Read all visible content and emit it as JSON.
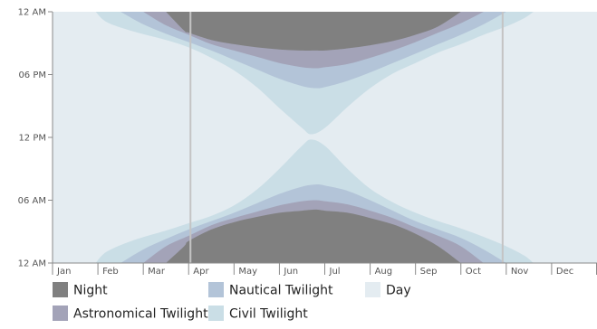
{
  "chart_data": {
    "type": "area",
    "title": "",
    "xlabel": "",
    "ylabel": "",
    "x_axis": {
      "categories": [
        "Jan",
        "Feb",
        "Mar",
        "Apr",
        "May",
        "Jun",
        "Jul",
        "Aug",
        "Sep",
        "Oct",
        "Nov",
        "Dec"
      ]
    },
    "y_axis": {
      "range_hours": [
        0,
        24
      ],
      "ticks": [
        {
          "hour": 0,
          "label": "12 AM"
        },
        {
          "hour": 6,
          "label": "06 AM"
        },
        {
          "hour": 12,
          "label": "12 PM"
        },
        {
          "hour": 18,
          "label": "06 PM"
        },
        {
          "hour": 24,
          "label": "12 AM"
        }
      ]
    },
    "reference_lines": [
      {
        "month_position": 3.04
      },
      {
        "month_position": 9.92
      }
    ],
    "series": [
      {
        "name": "Day",
        "color": "#e4ecf1",
        "start_month": 0,
        "end_month": 12,
        "points": [
          {
            "month": 0,
            "start": 0,
            "end": 24
          },
          {
            "month": 12,
            "start": 0,
            "end": 24
          }
        ]
      },
      {
        "name": "Civil Twilight",
        "color": "#cadee6",
        "start_month": 0.95,
        "end_month": 10.6,
        "points": [
          {
            "month": 0.95,
            "start": 0.0,
            "end": 0.0
          },
          {
            "month": 1.2,
            "start": 0.0,
            "end": 1.1
          },
          {
            "month": 1.8,
            "start": 0.0,
            "end": 2.2
          },
          {
            "month": 2.5,
            "start": 0.0,
            "end": 3.1
          },
          {
            "month": 3.0,
            "start": 0.0,
            "end": 3.8
          },
          {
            "month": 3.5,
            "start": 0.0,
            "end": 4.5
          },
          {
            "month": 4.0,
            "start": 0.0,
            "end": 5.5
          },
          {
            "month": 4.5,
            "start": 0.0,
            "end": 7.0
          },
          {
            "month": 5.0,
            "start": 0.0,
            "end": 9.0
          },
          {
            "month": 5.5,
            "start": 0.0,
            "end": 11.2
          },
          {
            "month": 5.7,
            "start": 0.0,
            "end": 11.8
          },
          {
            "month": 6.0,
            "start": 0.0,
            "end": 11.2
          },
          {
            "month": 6.5,
            "start": 0.0,
            "end": 9.0
          },
          {
            "month": 7.0,
            "start": 0.0,
            "end": 7.1
          },
          {
            "month": 7.5,
            "start": 0.0,
            "end": 5.8
          },
          {
            "month": 8.0,
            "start": 0.0,
            "end": 4.8
          },
          {
            "month": 8.5,
            "start": 0.0,
            "end": 4.0
          },
          {
            "month": 9.0,
            "start": 0.0,
            "end": 3.3
          },
          {
            "month": 9.5,
            "start": 0.0,
            "end": 2.5
          },
          {
            "month": 10.0,
            "start": 0.0,
            "end": 1.6
          },
          {
            "month": 10.4,
            "start": 0.0,
            "end": 0.7
          },
          {
            "month": 10.6,
            "start": 0.0,
            "end": 0.0
          }
        ],
        "points_evening": [
          {
            "month": 0.95,
            "start": 24.0,
            "end": 24.0
          },
          {
            "month": 1.2,
            "start": 23.0,
            "end": 24.0
          },
          {
            "month": 1.8,
            "start": 22.1,
            "end": 24.0
          },
          {
            "month": 2.5,
            "start": 21.3,
            "end": 24.0
          },
          {
            "month": 3.0,
            "start": 20.6,
            "end": 24.0
          },
          {
            "month": 3.5,
            "start": 19.6,
            "end": 24.0
          },
          {
            "month": 4.0,
            "start": 18.4,
            "end": 24.0
          },
          {
            "month": 4.5,
            "start": 16.8,
            "end": 24.0
          },
          {
            "month": 5.0,
            "start": 14.8,
            "end": 24.0
          },
          {
            "month": 5.5,
            "start": 12.9,
            "end": 24.0
          },
          {
            "month": 5.7,
            "start": 12.3,
            "end": 24.0
          },
          {
            "month": 6.0,
            "start": 12.9,
            "end": 24.0
          },
          {
            "month": 6.5,
            "start": 14.9,
            "end": 24.0
          },
          {
            "month": 7.0,
            "start": 16.7,
            "end": 24.0
          },
          {
            "month": 7.5,
            "start": 18.1,
            "end": 24.0
          },
          {
            "month": 8.0,
            "start": 19.1,
            "end": 24.0
          },
          {
            "month": 8.5,
            "start": 20.1,
            "end": 24.0
          },
          {
            "month": 9.0,
            "start": 20.9,
            "end": 24.0
          },
          {
            "month": 9.5,
            "start": 21.8,
            "end": 24.0
          },
          {
            "month": 10.0,
            "start": 22.6,
            "end": 24.0
          },
          {
            "month": 10.4,
            "start": 23.4,
            "end": 24.0
          },
          {
            "month": 10.6,
            "start": 24.0,
            "end": 24.0
          }
        ]
      },
      {
        "name": "Nautical Twilight",
        "color": "#b3c4d8",
        "start_month": 1.5,
        "end_month": 10.0,
        "points": [
          {
            "month": 1.5,
            "start": 0.0,
            "end": 0.0
          },
          {
            "month": 2.0,
            "start": 0.0,
            "end": 1.3
          },
          {
            "month": 2.5,
            "start": 0.0,
            "end": 2.3
          },
          {
            "month": 3.0,
            "start": 0.0,
            "end": 3.2
          },
          {
            "month": 3.5,
            "start": 0.0,
            "end": 4.0
          },
          {
            "month": 4.0,
            "start": 0.0,
            "end": 4.8
          },
          {
            "month": 4.5,
            "start": 0.0,
            "end": 5.7
          },
          {
            "month": 5.0,
            "start": 0.0,
            "end": 6.6
          },
          {
            "month": 5.5,
            "start": 0.0,
            "end": 7.3
          },
          {
            "month": 5.8,
            "start": 0.0,
            "end": 7.5
          },
          {
            "month": 6.0,
            "start": 0.0,
            "end": 7.4
          },
          {
            "month": 6.5,
            "start": 0.0,
            "end": 6.9
          },
          {
            "month": 7.0,
            "start": 0.0,
            "end": 6.0
          },
          {
            "month": 7.5,
            "start": 0.0,
            "end": 5.0
          },
          {
            "month": 8.0,
            "start": 0.0,
            "end": 4.0
          },
          {
            "month": 8.5,
            "start": 0.0,
            "end": 3.2
          },
          {
            "month": 9.0,
            "start": 0.0,
            "end": 2.4
          },
          {
            "month": 9.5,
            "start": 0.0,
            "end": 1.3
          },
          {
            "month": 10.0,
            "start": 0.0,
            "end": 0.0
          }
        ],
        "points_evening": [
          {
            "month": 1.5,
            "start": 24.0,
            "end": 24.0
          },
          {
            "month": 2.0,
            "start": 22.8,
            "end": 24.0
          },
          {
            "month": 2.5,
            "start": 21.9,
            "end": 24.0
          },
          {
            "month": 3.0,
            "start": 21.1,
            "end": 24.0
          },
          {
            "month": 3.5,
            "start": 20.3,
            "end": 24.0
          },
          {
            "month": 4.0,
            "start": 19.4,
            "end": 24.0
          },
          {
            "month": 4.5,
            "start": 18.5,
            "end": 24.0
          },
          {
            "month": 5.0,
            "start": 17.6,
            "end": 24.0
          },
          {
            "month": 5.5,
            "start": 16.9,
            "end": 24.0
          },
          {
            "month": 5.8,
            "start": 16.7,
            "end": 24.0
          },
          {
            "month": 6.0,
            "start": 16.8,
            "end": 24.0
          },
          {
            "month": 6.5,
            "start": 17.4,
            "end": 24.0
          },
          {
            "month": 7.0,
            "start": 18.2,
            "end": 24.0
          },
          {
            "month": 7.5,
            "start": 19.1,
            "end": 24.0
          },
          {
            "month": 8.0,
            "start": 20.0,
            "end": 24.0
          },
          {
            "month": 8.5,
            "start": 20.9,
            "end": 24.0
          },
          {
            "month": 9.0,
            "start": 21.8,
            "end": 24.0
          },
          {
            "month": 9.5,
            "start": 22.8,
            "end": 24.0
          },
          {
            "month": 10.0,
            "start": 24.0,
            "end": 24.0
          }
        ]
      },
      {
        "name": "Astronomical Twilight",
        "color": "#a3a3b8",
        "start_month": 2.0,
        "end_month": 9.5,
        "points": [
          {
            "month": 2.0,
            "start": 0.0,
            "end": 0.0
          },
          {
            "month": 2.5,
            "start": 0.0,
            "end": 1.6
          },
          {
            "month": 3.0,
            "start": 0.0,
            "end": 2.6
          },
          {
            "month": 3.5,
            "start": 0.0,
            "end": 3.6
          },
          {
            "month": 4.0,
            "start": 0.0,
            "end": 4.3
          },
          {
            "month": 4.5,
            "start": 0.0,
            "end": 4.9
          },
          {
            "month": 5.0,
            "start": 0.0,
            "end": 5.5
          },
          {
            "month": 5.5,
            "start": 0.0,
            "end": 5.9
          },
          {
            "month": 5.8,
            "start": 0.0,
            "end": 6.0
          },
          {
            "month": 6.0,
            "start": 0.0,
            "end": 5.9
          },
          {
            "month": 6.5,
            "start": 0.0,
            "end": 5.6
          },
          {
            "month": 7.0,
            "start": 0.0,
            "end": 5.0
          },
          {
            "month": 7.5,
            "start": 0.0,
            "end": 4.3
          },
          {
            "month": 8.0,
            "start": 0.0,
            "end": 3.4
          },
          {
            "month": 8.5,
            "start": 0.0,
            "end": 2.6
          },
          {
            "month": 9.0,
            "start": 0.0,
            "end": 1.6
          },
          {
            "month": 9.5,
            "start": 0.0,
            "end": 0.0
          }
        ],
        "points_evening": [
          {
            "month": 2.0,
            "start": 24.0,
            "end": 24.0
          },
          {
            "month": 2.5,
            "start": 22.7,
            "end": 24.0
          },
          {
            "month": 3.0,
            "start": 21.8,
            "end": 24.0
          },
          {
            "month": 3.5,
            "start": 20.9,
            "end": 24.0
          },
          {
            "month": 4.0,
            "start": 20.3,
            "end": 24.0
          },
          {
            "month": 4.5,
            "start": 19.7,
            "end": 24.0
          },
          {
            "month": 5.0,
            "start": 19.1,
            "end": 24.0
          },
          {
            "month": 5.5,
            "start": 18.7,
            "end": 24.0
          },
          {
            "month": 5.8,
            "start": 18.6,
            "end": 24.0
          },
          {
            "month": 6.0,
            "start": 18.7,
            "end": 24.0
          },
          {
            "month": 6.5,
            "start": 19.0,
            "end": 24.0
          },
          {
            "month": 7.0,
            "start": 19.6,
            "end": 24.0
          },
          {
            "month": 7.5,
            "start": 20.3,
            "end": 24.0
          },
          {
            "month": 8.0,
            "start": 21.1,
            "end": 24.0
          },
          {
            "month": 8.5,
            "start": 22.0,
            "end": 24.0
          },
          {
            "month": 9.0,
            "start": 22.9,
            "end": 24.0
          },
          {
            "month": 9.5,
            "start": 24.0,
            "end": 24.0
          }
        ]
      },
      {
        "name": "Night",
        "color": "#808080",
        "start_month": 2.5,
        "end_month": 9.0,
        "points": [
          {
            "month": 2.5,
            "start": 0.0,
            "end": 0.0
          },
          {
            "month": 2.9,
            "start": 0.0,
            "end": 1.6
          },
          {
            "month": 3.0,
            "start": 0.0,
            "end": 2.1
          },
          {
            "month": 3.5,
            "start": 0.0,
            "end": 3.2
          },
          {
            "month": 4.0,
            "start": 0.0,
            "end": 3.9
          },
          {
            "month": 4.5,
            "start": 0.0,
            "end": 4.4
          },
          {
            "month": 5.0,
            "start": 0.0,
            "end": 4.8
          },
          {
            "month": 5.5,
            "start": 0.0,
            "end": 5.0
          },
          {
            "month": 5.8,
            "start": 0.0,
            "end": 5.1
          },
          {
            "month": 6.0,
            "start": 0.0,
            "end": 5.0
          },
          {
            "month": 6.5,
            "start": 0.0,
            "end": 4.8
          },
          {
            "month": 7.0,
            "start": 0.0,
            "end": 4.3
          },
          {
            "month": 7.5,
            "start": 0.0,
            "end": 3.7
          },
          {
            "month": 8.0,
            "start": 0.0,
            "end": 2.8
          },
          {
            "month": 8.5,
            "start": 0.0,
            "end": 1.6
          },
          {
            "month": 9.0,
            "start": 0.0,
            "end": 0.0
          }
        ],
        "points_evening": [
          {
            "month": 2.5,
            "start": 24.0,
            "end": 24.0
          },
          {
            "month": 2.9,
            "start": 22.2,
            "end": 24.0
          },
          {
            "month": 3.0,
            "start": 22.0,
            "end": 24.0
          },
          {
            "month": 3.5,
            "start": 21.3,
            "end": 24.0
          },
          {
            "month": 4.0,
            "start": 20.9,
            "end": 24.0
          },
          {
            "month": 4.5,
            "start": 20.6,
            "end": 24.0
          },
          {
            "month": 5.0,
            "start": 20.4,
            "end": 24.0
          },
          {
            "month": 5.5,
            "start": 20.3,
            "end": 24.0
          },
          {
            "month": 5.8,
            "start": 20.3,
            "end": 24.0
          },
          {
            "month": 6.0,
            "start": 20.3,
            "end": 24.0
          },
          {
            "month": 6.5,
            "start": 20.5,
            "end": 24.0
          },
          {
            "month": 7.0,
            "start": 20.8,
            "end": 24.0
          },
          {
            "month": 7.5,
            "start": 21.2,
            "end": 24.0
          },
          {
            "month": 8.0,
            "start": 21.8,
            "end": 24.0
          },
          {
            "month": 8.5,
            "start": 22.6,
            "end": 24.0
          },
          {
            "month": 9.0,
            "start": 24.0,
            "end": 24.0
          }
        ]
      }
    ],
    "legend": {
      "placement": "bottom",
      "items": [
        {
          "label": "Night",
          "color": "#808080"
        },
        {
          "label": "Nautical Twilight",
          "color": "#b3c4d8"
        },
        {
          "label": "Day",
          "color": "#e4ecf1"
        },
        {
          "label": "Astronomical Twilight",
          "color": "#a3a3b8"
        },
        {
          "label": "Civil Twilight",
          "color": "#cadee6"
        }
      ]
    }
  }
}
